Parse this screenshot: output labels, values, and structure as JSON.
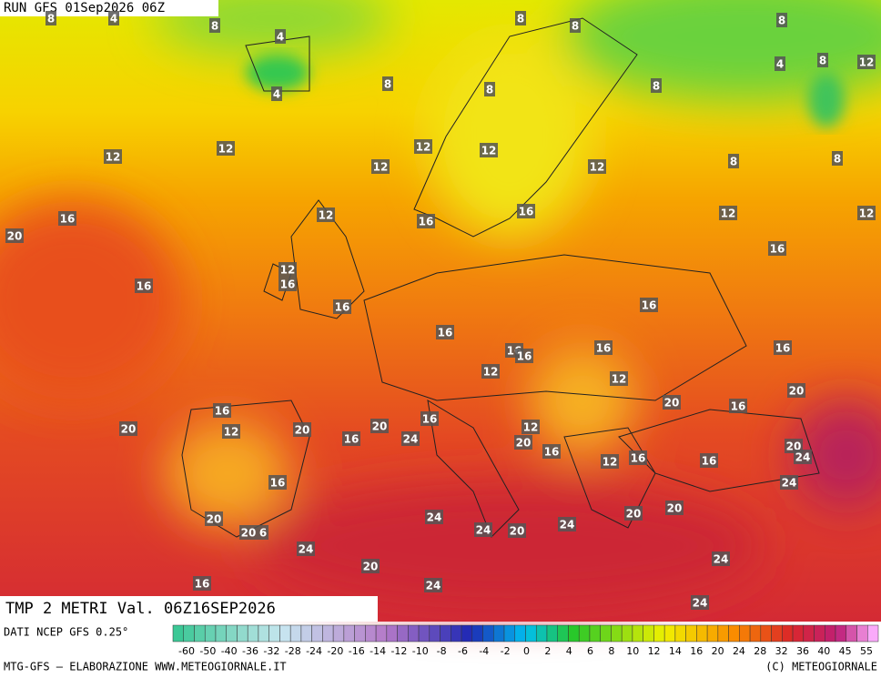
{
  "header": {
    "run": "RUN GFS 01Sep2026 06Z",
    "field": "TMP 2 METRI Val. 06Z16SEP2026"
  },
  "map": {
    "labels": [
      8,
      4,
      8,
      4,
      8,
      8,
      8,
      12,
      8,
      4,
      8,
      8,
      8,
      4,
      12,
      12,
      12,
      12,
      12,
      12,
      8,
      8,
      16,
      12,
      16,
      16,
      12,
      12,
      20,
      16,
      12,
      16,
      16,
      16,
      16,
      16,
      16,
      16,
      16,
      16,
      12,
      12,
      20,
      16,
      20,
      16,
      12,
      20,
      20,
      20,
      16,
      16,
      24,
      12,
      20,
      16,
      12,
      16,
      16,
      20,
      24,
      24,
      16,
      20,
      20,
      6,
      24,
      24,
      20,
      24,
      20,
      20,
      24,
      20,
      24,
      16,
      24,
      24
    ]
  },
  "colorbar": {
    "ticks": [
      -60,
      -50,
      -40,
      -36,
      -32,
      -28,
      -24,
      -20,
      -16,
      -14,
      -12,
      -10,
      -8,
      -6,
      -4,
      -2,
      0,
      2,
      4,
      6,
      8,
      10,
      12,
      14,
      16,
      20,
      24,
      28,
      32,
      36,
      40,
      45,
      55
    ]
  },
  "footer": {
    "source": "DATI NCEP GFS 0.25°",
    "credit": "MTG-GFS — ELABORAZIONE WWW.METEOGIORNALE.IT",
    "copyright": "(C) METEOGIORNALE"
  }
}
